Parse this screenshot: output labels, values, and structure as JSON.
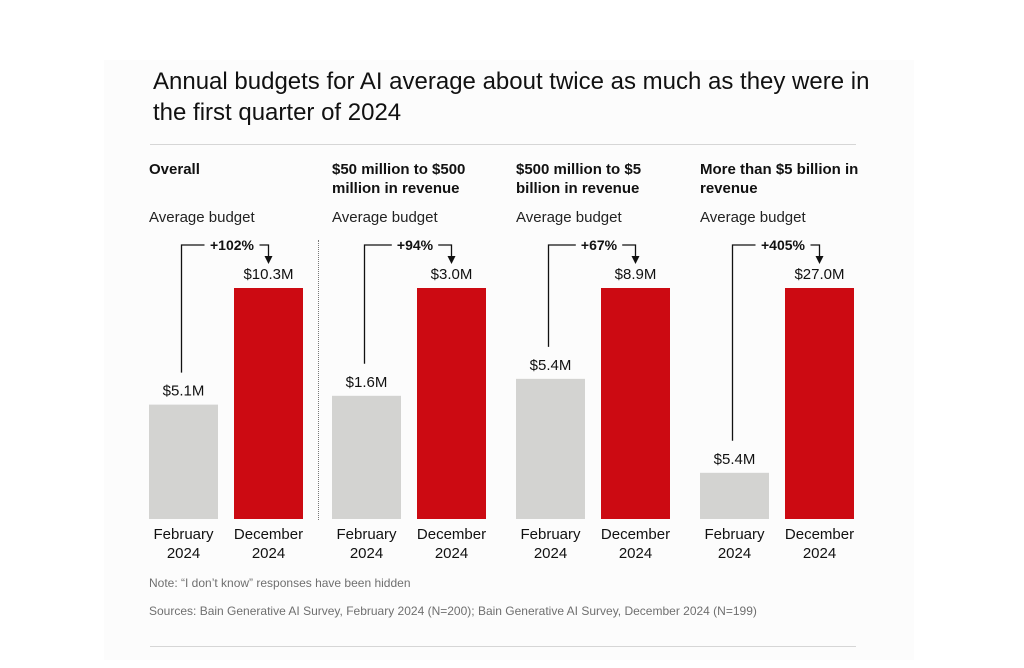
{
  "title": "Annual budgets for AI average about twice as much as they were in the first quarter of 2024",
  "note": "Note: “I don’t know” responses have been hidden",
  "sources": "Sources: Bain Generative AI Survey, February 2024 (N=200); Bain Generative AI Survey, December 2024 (N=199)",
  "colors": {
    "february": "#d3d3d1",
    "december": "#cc0a12",
    "text": "#111111"
  },
  "chart_data": {
    "type": "bar",
    "categories": [
      "February 2024",
      "December 2024"
    ],
    "y_unit": "USD millions",
    "ylim": [
      0,
      10.3
    ],
    "panels": [
      {
        "title": "Overall",
        "subtitle": "Average budget",
        "values": [
          5.1,
          10.3
        ],
        "value_labels": [
          "$5.1M",
          "$10.3M"
        ],
        "change_label": "+102%"
      },
      {
        "title": "$50 million to $500 million in revenue",
        "subtitle": "Average budget",
        "values": [
          1.6,
          3.0
        ],
        "value_labels": [
          "$1.6M",
          "$3.0M"
        ],
        "change_label": "+94%"
      },
      {
        "title": "$500 million to $5 billion in revenue",
        "subtitle": "Average budget",
        "values": [
          5.4,
          8.9
        ],
        "value_labels": [
          "$5.4M",
          "$8.9M"
        ],
        "change_label": "+67%"
      },
      {
        "title": "More than $5 billion in revenue",
        "subtitle": "Average budget",
        "values": [
          5.4,
          27.0
        ],
        "value_labels": [
          "$5.4M",
          "$27.0M"
        ],
        "change_label": "+405%"
      }
    ],
    "x_labels": [
      [
        "February",
        "2024"
      ],
      [
        "December",
        "2024"
      ]
    ],
    "grid": false,
    "legend": "none"
  }
}
